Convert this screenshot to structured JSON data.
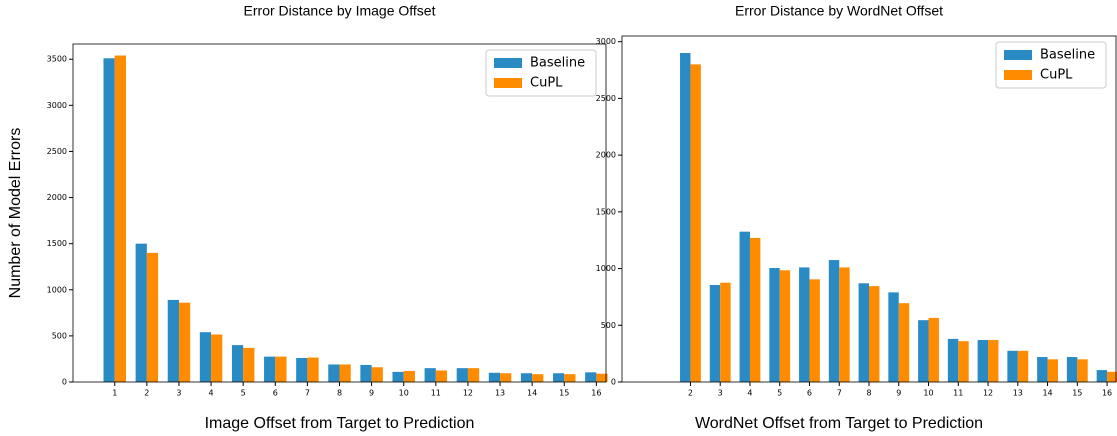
{
  "chart_data": [
    {
      "type": "bar",
      "title": "Error Distance by Image Offset",
      "xlabel": "Image Offset from Target to Prediction",
      "ylabel": "Number of Model Errors",
      "x": [
        1,
        2,
        3,
        4,
        5,
        6,
        7,
        8,
        9,
        10,
        11,
        12,
        13,
        14,
        15,
        16
      ],
      "series": [
        {
          "name": "Baseline",
          "color": "#2a8ac4",
          "values": [
            3510,
            1500,
            890,
            540,
            400,
            275,
            260,
            190,
            185,
            110,
            150,
            150,
            100,
            95,
            95,
            105
          ]
        },
        {
          "name": "CuPL",
          "color": "#ff8c00",
          "values": [
            3540,
            1400,
            860,
            515,
            370,
            275,
            265,
            190,
            160,
            120,
            125,
            150,
            95,
            85,
            85,
            90
          ]
        }
      ],
      "xlim": [
        -0.3,
        16.3
      ],
      "xticks": [
        1,
        2,
        3,
        4,
        5,
        6,
        7,
        8,
        9,
        10,
        11,
        12,
        13,
        14,
        15,
        16
      ],
      "ylim": [
        0,
        3665
      ],
      "yticks": [
        0,
        500,
        1000,
        1500,
        2000,
        2500,
        3000,
        3500
      ],
      "legend": "upper right"
    },
    {
      "type": "bar",
      "title": "Error Distance by WordNet Offset",
      "xlabel": "WordNet Offset from Target to Prediction",
      "x": [
        2,
        3,
        4,
        5,
        6,
        7,
        8,
        9,
        10,
        11,
        12,
        13,
        14,
        15,
        16
      ],
      "series": [
        {
          "name": "Baseline",
          "color": "#2a8ac4",
          "values": [
            2900,
            855,
            1325,
            1005,
            1010,
            1075,
            870,
            790,
            545,
            380,
            370,
            275,
            220,
            220,
            105
          ]
        },
        {
          "name": "CuPL",
          "color": "#ff8c00",
          "values": [
            2800,
            875,
            1270,
            985,
            905,
            1010,
            845,
            695,
            565,
            360,
            370,
            275,
            200,
            200,
            90
          ]
        }
      ],
      "xlim": [
        -0.3,
        16.3
      ],
      "xticks": [
        2,
        3,
        4,
        5,
        6,
        7,
        8,
        9,
        10,
        11,
        12,
        13,
        14,
        15,
        16
      ],
      "ylim": [
        0,
        3050
      ],
      "yticks": [
        0,
        500,
        1000,
        1500,
        2000,
        2500,
        3000
      ],
      "legend": "upper right"
    }
  ]
}
